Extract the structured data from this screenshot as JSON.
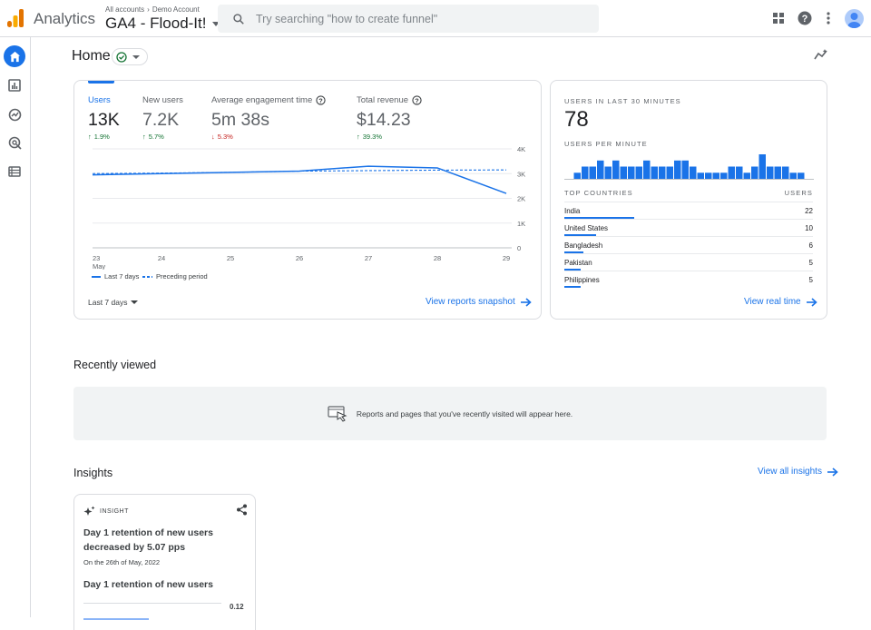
{
  "header": {
    "app_name": "Analytics",
    "breadcrumb": [
      "All accounts",
      "Demo Account"
    ],
    "property": "GA4 - Flood-It!",
    "search_placeholder": "Try searching \"how to create funnel\""
  },
  "page": {
    "title": "Home"
  },
  "overview": {
    "metrics": [
      {
        "label": "Users",
        "value": "13K",
        "change": "1.9%",
        "direction": "up",
        "active": true
      },
      {
        "label": "New users",
        "value": "7.2K",
        "change": "5.7%",
        "direction": "up"
      },
      {
        "label": "Average engagement time",
        "value": "5m 38s",
        "change": "5.3%",
        "direction": "down",
        "help": true
      },
      {
        "label": "Total revenue",
        "value": "$14.23",
        "change": "39.3%",
        "direction": "up",
        "help": true
      }
    ],
    "date_range": "Last 7 days",
    "view_link": "View reports snapshot"
  },
  "chart_data": {
    "type": "line",
    "x_ticks": [
      "23",
      "24",
      "25",
      "26",
      "27",
      "28",
      "29"
    ],
    "x_first_sublabel": "May",
    "y_ticks": [
      "4K",
      "3K",
      "2K",
      "1K",
      "0"
    ],
    "ylim": [
      0,
      4000
    ],
    "series": [
      {
        "name": "Last 7 days",
        "style": "solid",
        "color": "#1a73e8",
        "values": [
          2950,
          3000,
          3050,
          3100,
          3300,
          3230,
          2200
        ]
      },
      {
        "name": "Preceding period",
        "style": "dashed",
        "color": "#1a73e8",
        "values": [
          3000,
          3020,
          3050,
          3100,
          3120,
          3140,
          3150
        ]
      }
    ],
    "legend_placement": "bottom-left",
    "grid": true
  },
  "realtime": {
    "title": "USERS IN LAST 30 MINUTES",
    "value": "78",
    "per_minute_label": "USERS PER MINUTE",
    "per_minute_values": [
      1,
      2,
      2,
      3,
      2,
      3,
      2,
      2,
      2,
      3,
      2,
      2,
      2,
      3,
      3,
      2,
      1,
      1,
      1,
      1,
      2,
      2,
      1,
      2,
      4,
      2,
      2,
      2,
      1,
      1
    ],
    "countries_label": "TOP COUNTRIES",
    "users_label": "USERS",
    "countries": [
      {
        "name": "India",
        "value": "22",
        "share": 1.0
      },
      {
        "name": "United States",
        "value": "10",
        "share": 0.45
      },
      {
        "name": "Bangladesh",
        "value": "6",
        "share": 0.27
      },
      {
        "name": "Pakistan",
        "value": "5",
        "share": 0.23
      },
      {
        "name": "Philippines",
        "value": "5",
        "share": 0.23
      }
    ],
    "view_link": "View real time"
  },
  "recent": {
    "title": "Recently viewed",
    "empty_text": "Reports and pages that you've recently visited will appear here."
  },
  "insights": {
    "title": "Insights",
    "view_link": "View all insights",
    "card": {
      "tag": "INSIGHT",
      "headline": "Day 1 retention of new users decreased by 5.07 pps",
      "date": "On the 26th of May, 2022",
      "subtitle": "Day 1 retention of new users",
      "axis_value": "0.12"
    }
  },
  "colors": {
    "accent": "#1a73e8",
    "up": "#137333",
    "down": "#c5221f"
  }
}
